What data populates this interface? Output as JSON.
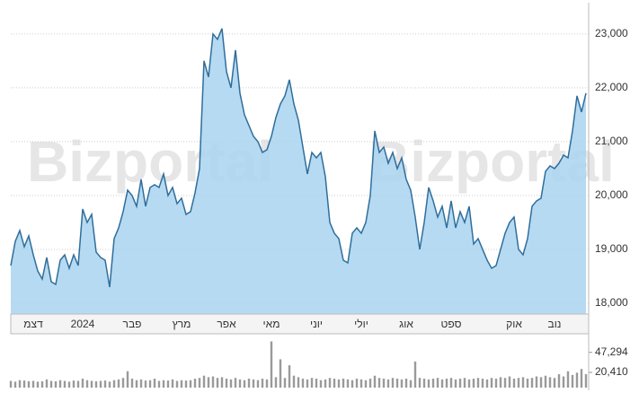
{
  "chart_data": [
    {
      "type": "area",
      "watermark": "Bizportal",
      "color": "#2f6e9c",
      "fill": "#a9d3ef",
      "grid": true,
      "categories": [
        null,
        null,
        null,
        null,
        null,
        "דצמ",
        null,
        null,
        null,
        null,
        null,
        null,
        null,
        null,
        null,
        null,
        "2024",
        null,
        null,
        null,
        null,
        null,
        null,
        null,
        null,
        null,
        null,
        "פבר",
        null,
        null,
        null,
        null,
        null,
        null,
        null,
        null,
        null,
        null,
        "מרץ",
        null,
        null,
        null,
        null,
        null,
        null,
        null,
        null,
        null,
        "אפר",
        null,
        null,
        null,
        null,
        null,
        null,
        null,
        null,
        null,
        "מאי",
        null,
        null,
        null,
        null,
        null,
        null,
        null,
        null,
        null,
        "יוני",
        null,
        null,
        null,
        null,
        null,
        null,
        null,
        null,
        null,
        "יולי",
        null,
        null,
        null,
        null,
        null,
        null,
        null,
        null,
        null,
        "אוג",
        null,
        null,
        null,
        null,
        null,
        null,
        null,
        null,
        null,
        "ספט",
        null,
        null,
        null,
        null,
        null,
        null,
        null,
        null,
        null,
        null,
        null,
        null,
        null,
        "אוק",
        null,
        null,
        null,
        null,
        null,
        null,
        null,
        null,
        "נוב",
        null,
        null,
        null,
        null,
        null,
        null,
        null
      ],
      "values": [
        18700,
        19150,
        19350,
        19050,
        19250,
        18900,
        18600,
        18450,
        18850,
        18400,
        18350,
        18800,
        18900,
        18650,
        18900,
        18700,
        19750,
        19500,
        19650,
        18950,
        18850,
        18800,
        18300,
        19200,
        19400,
        19700,
        20100,
        20000,
        19800,
        20300,
        19800,
        20150,
        20200,
        20150,
        20400,
        20000,
        20150,
        19850,
        19950,
        19650,
        19700,
        20050,
        20500,
        22500,
        22200,
        23000,
        22900,
        23100,
        22300,
        22000,
        22700,
        21900,
        21500,
        21300,
        21100,
        21000,
        20800,
        20850,
        21100,
        21450,
        21700,
        21850,
        22150,
        21700,
        21400,
        20900,
        20400,
        20800,
        20700,
        20800,
        20350,
        19500,
        19300,
        19200,
        18800,
        18750,
        19300,
        19400,
        19300,
        19500,
        20000,
        21200,
        20800,
        20900,
        20600,
        20800,
        20500,
        20700,
        20300,
        20100,
        19600,
        19000,
        19500,
        20150,
        19900,
        19600,
        19800,
        19400,
        19900,
        19400,
        19700,
        19500,
        19800,
        19100,
        19200,
        19000,
        18800,
        18650,
        18700,
        19000,
        19300,
        19500,
        19600,
        19000,
        18900,
        19200,
        19800,
        19900,
        19950,
        20450,
        20550,
        20500,
        20600,
        20750,
        20700,
        21200,
        21850,
        21550,
        21900
      ],
      "ylim": [
        17800,
        23580
      ],
      "yticks": [
        {
          "value": 18000,
          "label": "18,000"
        },
        {
          "value": 19000,
          "label": "19,000"
        },
        {
          "value": 20000,
          "label": "20,000"
        },
        {
          "value": 21000,
          "label": "21,000"
        },
        {
          "value": 22000,
          "label": "22,000"
        },
        {
          "value": 23000,
          "label": "23,000"
        }
      ]
    },
    {
      "type": "bar",
      "color": "#9a9a9a",
      "values": [
        9000,
        8000,
        10000,
        9500,
        8500,
        9000,
        8000,
        8500,
        11000,
        9000,
        8500,
        10000,
        9000,
        8000,
        9500,
        9000,
        12000,
        10000,
        9000,
        8500,
        9000,
        9500,
        8000,
        10000,
        11000,
        13000,
        22000,
        12000,
        10000,
        11000,
        9500,
        10000,
        12000,
        9000,
        10000,
        9500,
        11000,
        9000,
        10000,
        9500,
        10000,
        12000,
        13000,
        16000,
        14000,
        15000,
        13000,
        14000,
        12000,
        11000,
        13000,
        11000,
        10000,
        12000,
        11000,
        10000,
        12000,
        11000,
        62000,
        14000,
        38000,
        13000,
        30000,
        16000,
        14000,
        12000,
        11000,
        13000,
        12000,
        10000,
        11000,
        13000,
        12000,
        11000,
        12000,
        11000,
        10000,
        12000,
        11000,
        10000,
        12000,
        16000,
        13000,
        12000,
        11000,
        13000,
        12000,
        11000,
        12000,
        10000,
        35000,
        13000,
        12000,
        11000,
        12000,
        13000,
        11000,
        12000,
        13000,
        11000,
        12000,
        13000,
        11000,
        12000,
        13000,
        12000,
        11000,
        13000,
        12000,
        14000,
        13000,
        15000,
        12000,
        13000,
        14000,
        12000,
        13000,
        15000,
        14000,
        16000,
        14000,
        13000,
        18000,
        15000,
        22000,
        17000,
        20000,
        25000,
        18000
      ],
      "ylim": [
        0,
        65000
      ],
      "yticks": [
        {
          "value": 20410,
          "label": "20,410"
        },
        {
          "value": 47294,
          "label": "47,294"
        }
      ]
    }
  ]
}
